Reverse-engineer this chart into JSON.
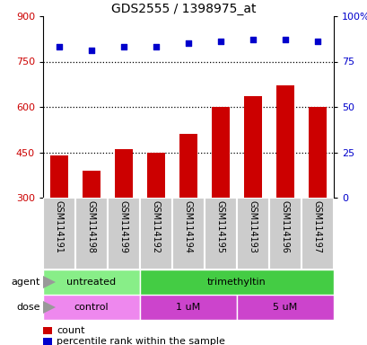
{
  "title": "GDS2555 / 1398975_at",
  "samples": [
    "GSM114191",
    "GSM114198",
    "GSM114199",
    "GSM114192",
    "GSM114194",
    "GSM114195",
    "GSM114193",
    "GSM114196",
    "GSM114197"
  ],
  "counts": [
    440,
    390,
    460,
    450,
    510,
    600,
    635,
    670,
    600
  ],
  "percentiles": [
    83,
    81,
    83,
    83,
    85,
    86,
    87,
    87,
    86
  ],
  "y_min": 300,
  "y_max": 900,
  "y_ticks": [
    300,
    450,
    600,
    750,
    900
  ],
  "y_right_ticks": [
    0,
    25,
    50,
    75,
    100
  ],
  "y_right_labels": [
    "0",
    "25",
    "50",
    "75",
    "100%"
  ],
  "bar_color": "#cc0000",
  "dot_color": "#0000cc",
  "bar_width": 0.55,
  "agent_groups": [
    {
      "label": "untreated",
      "start": 0,
      "end": 3,
      "color": "#88ee88"
    },
    {
      "label": "trimethyltin",
      "start": 3,
      "end": 9,
      "color": "#44cc44"
    }
  ],
  "dose_groups": [
    {
      "label": "control",
      "start": 0,
      "end": 3,
      "color": "#ee88ee"
    },
    {
      "label": "1 uM",
      "start": 3,
      "end": 6,
      "color": "#cc44cc"
    },
    {
      "label": "5 uM",
      "start": 6,
      "end": 9,
      "color": "#cc44cc"
    }
  ],
  "legend_count_color": "#cc0000",
  "legend_dot_color": "#0000cc",
  "tick_label_color_left": "#cc0000",
  "tick_label_color_right": "#0000cc",
  "dotted_lines": [
    450,
    600,
    750
  ],
  "sample_box_color": "#cccccc",
  "sample_box_edge": "#ffffff"
}
